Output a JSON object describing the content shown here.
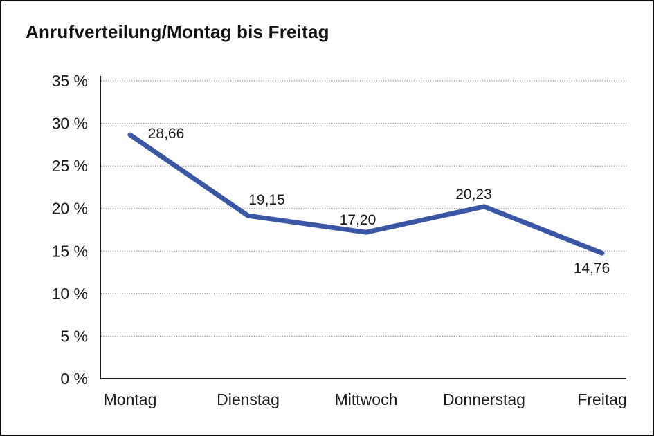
{
  "title": "Anrufverteilung/Montag bis Freitag",
  "chart_data": {
    "type": "line",
    "title": "Anrufverteilung/Montag bis Freitag",
    "categories": [
      "Montag",
      "Dienstag",
      "Mittwoch",
      "Donnerstag",
      "Freitag"
    ],
    "series": [
      {
        "name": "Anrufverteilung",
        "values": [
          28.66,
          19.15,
          17.2,
          20.23,
          14.76
        ],
        "point_labels": [
          "28,66",
          "19,15",
          "17,20",
          "20,23",
          "14,76"
        ],
        "color": "#3A57A5"
      }
    ],
    "xlabel": "",
    "ylabel": "",
    "ylim": [
      0,
      35
    ],
    "ytick_step": 5,
    "ytick_labels": [
      "0 %",
      "5 %",
      "10 %",
      "15 %",
      "20 %",
      "25 %",
      "30 %",
      "35 %"
    ],
    "grid": "horizontal dotted gridlines at 5% steps, 0% line is solid axis",
    "legend_position": "none"
  },
  "colors": {
    "line": "#3A57A5",
    "axis": "#1a1a1a",
    "gridline": "#7a7a7a",
    "text": "#1a1a1a",
    "background": "#ffffff",
    "frame_border": "#0f0f0f"
  }
}
